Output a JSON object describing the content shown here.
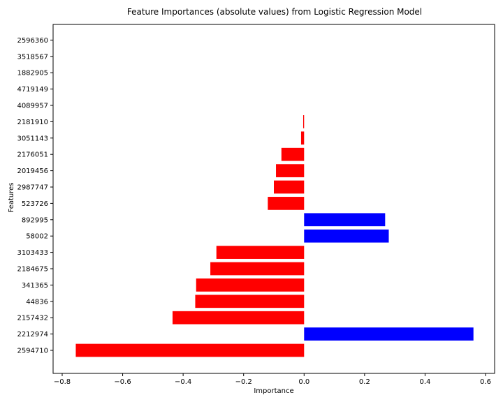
{
  "chart_data": {
    "type": "bar",
    "orientation": "horizontal",
    "title": "Feature Importances (absolute values) from Logistic Regression Model",
    "xlabel": "Importance",
    "ylabel": "Features",
    "xlim": [
      -0.83,
      0.63
    ],
    "x_ticks": [
      -0.8,
      -0.6,
      -0.4,
      -0.2,
      0.0,
      0.2,
      0.4,
      0.6
    ],
    "x_tick_labels": [
      "−0.8",
      "−0.6",
      "−0.4",
      "−0.2",
      "0.0",
      "0.2",
      "0.4",
      "0.6"
    ],
    "grid": false,
    "legend": "none",
    "colors": {
      "negative": "#ff0000",
      "positive": "#0000ff"
    },
    "categories": [
      "2594710",
      "2212974",
      "2157432",
      "44836",
      "341365",
      "2184675",
      "3103433",
      "58002",
      "892995",
      "523726",
      "2987747",
      "2019456",
      "2176051",
      "3051143",
      "2181910",
      "4089957",
      "4719149",
      "1882905",
      "3518567",
      "2596360"
    ],
    "values": [
      -0.755,
      0.56,
      -0.435,
      -0.36,
      -0.357,
      -0.31,
      -0.29,
      0.28,
      0.268,
      -0.12,
      -0.1,
      -0.093,
      -0.075,
      -0.01,
      -0.003,
      0.0,
      0.0,
      0.0,
      0.0,
      0.0
    ]
  }
}
